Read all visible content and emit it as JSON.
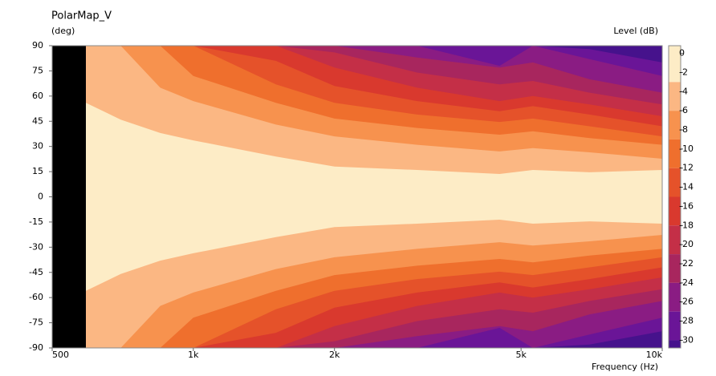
{
  "chart_data": {
    "type": "contour",
    "title": "PolarMap_V",
    "y_label": "(deg)",
    "z_label": "Level  (dB)",
    "x_label": "Frequency  (Hz)",
    "log_x": true,
    "xlim": [
      500,
      10000
    ],
    "xticks": [
      500,
      {
        "value": 1000,
        "label": "1k"
      },
      {
        "value": 2000,
        "label": "2k"
      },
      {
        "value": 5000,
        "label": "5k"
      },
      {
        "value": 10000,
        "label": "10k"
      }
    ],
    "ylim": [
      -90,
      90
    ],
    "yticks": [
      90,
      75,
      60,
      45,
      30,
      15,
      0,
      -15,
      -30,
      -45,
      -60,
      -75,
      -90
    ],
    "zlim": [
      0.8,
      -30.8
    ],
    "zticks": [
      0,
      -2,
      -4,
      -6,
      -8,
      -10,
      -12,
      -14,
      -16,
      -18,
      -20,
      -22,
      -24,
      -26,
      -28,
      -30
    ],
    "no_data_color": "#000000",
    "band_colors": [
      "#fdecc6",
      "#fbb783",
      "#f7924e",
      "#ef6f2d",
      "#e5522a",
      "#d9392e",
      "#c42f47",
      "#a8265e",
      "#8a1c83",
      "#6a1597",
      "#46128c"
    ],
    "x": [
      590,
      700,
      850,
      1000,
      1500,
      2000,
      3000,
      4500,
      5300,
      7000,
      10000
    ],
    "contours": [
      {
        "level": -3,
        "angles": [
          56,
          46,
          38,
          33.6,
          24,
          18,
          16,
          13.6,
          16,
          14.6,
          16
        ]
      },
      {
        "level": -6,
        "angles": [
          90,
          90,
          65,
          57,
          43,
          36,
          31,
          27,
          29,
          26.5,
          22.7
        ]
      },
      {
        "level": -9,
        "angles": [
          90,
          90,
          90,
          72,
          56,
          46.6,
          41,
          37,
          39,
          35,
          31
        ]
      },
      {
        "level": -12,
        "angles": [
          90,
          90,
          90,
          90,
          67,
          56,
          49,
          44.6,
          46.6,
          42,
          36
        ]
      },
      {
        "level": -15,
        "angles": [
          90,
          90,
          90,
          90,
          81,
          66,
          57,
          51,
          54,
          49,
          42
        ]
      },
      {
        "level": -18,
        "angles": [
          90,
          90,
          90,
          90,
          90,
          77,
          65,
          57,
          60,
          55,
          48
        ]
      },
      {
        "level": -21,
        "angles": [
          90,
          90,
          90,
          90,
          90,
          86,
          74,
          67,
          69,
          62,
          55
        ]
      },
      {
        "level": -24,
        "angles": [
          90,
          90,
          90,
          90,
          90,
          90,
          83,
          77,
          80,
          70,
          62
        ]
      },
      {
        "level": -27,
        "angles": [
          90,
          90,
          90,
          90,
          90,
          90,
          90,
          78,
          90,
          82,
          72
        ]
      },
      {
        "level": -30,
        "angles": [
          90,
          90,
          90,
          90,
          90,
          90,
          90,
          90,
          90,
          88,
          80
        ]
      }
    ]
  }
}
